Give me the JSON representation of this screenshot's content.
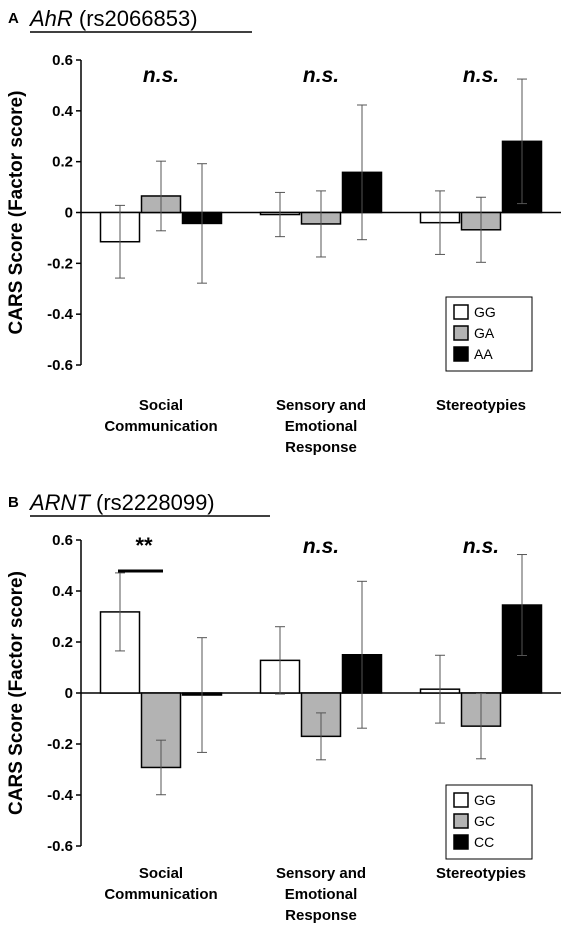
{
  "chart_data": [
    {
      "type": "bar",
      "panel_letter": "A",
      "title_gene": "AhR",
      "title_snp": " (rs2066853)",
      "ylabel": "CARS Score (Factor score)",
      "ylim": [
        -0.6,
        0.6
      ],
      "yticks": [
        "0.6",
        "0.4",
        "0.2",
        "0",
        "-0.2",
        "-0.4",
        "-0.6"
      ],
      "categories": [
        [
          "Social",
          "Communication"
        ],
        [
          "Sensory and",
          "Emotional",
          "Response"
        ],
        [
          "Stereotypies"
        ]
      ],
      "series": [
        {
          "name": "GG",
          "color": "#ffffff",
          "values": [
            -0.115,
            -0.008,
            -0.04
          ],
          "errors": [
            0.143,
            0.087,
            0.125
          ]
        },
        {
          "name": "GA",
          "color": "#b3b3b3",
          "values": [
            0.065,
            -0.045,
            -0.068
          ],
          "errors": [
            0.137,
            0.13,
            0.128
          ]
        },
        {
          "name": "AA",
          "color": "#000000",
          "values": [
            -0.043,
            0.158,
            0.28
          ],
          "errors": [
            0.235,
            0.265,
            0.245
          ]
        }
      ],
      "significance": [
        "n.s.",
        "n.s.",
        "n.s."
      ],
      "legend_position": "bottom-right"
    },
    {
      "type": "bar",
      "panel_letter": "B",
      "title_gene": "ARNT",
      "title_snp": " (rs2228099)",
      "ylabel": "CARS Score (Factor score)",
      "ylim": [
        -0.6,
        0.6
      ],
      "yticks": [
        "0.6",
        "0.4",
        "0.2",
        "0",
        "-0.2",
        "-0.4",
        "-0.6"
      ],
      "categories": [
        [
          "Social",
          "Communication"
        ],
        [
          "Sensory and",
          "Emotional",
          "Response"
        ],
        [
          "Stereotypies"
        ]
      ],
      "series": [
        {
          "name": "GG",
          "color": "#ffffff",
          "values": [
            0.318,
            0.128,
            0.015
          ],
          "errors": [
            0.153,
            0.132,
            0.133
          ]
        },
        {
          "name": "GC",
          "color": "#b3b3b3",
          "values": [
            -0.292,
            -0.17,
            -0.13
          ],
          "errors": [
            0.107,
            0.092,
            0.128
          ]
        },
        {
          "name": "CC",
          "color": "#000000",
          "values": [
            -0.008,
            0.15,
            0.345
          ],
          "errors": [
            0.225,
            0.288,
            0.198
          ]
        }
      ],
      "significance": [
        "**",
        "n.s.",
        "n.s."
      ],
      "legend_position": "bottom-right"
    }
  ]
}
